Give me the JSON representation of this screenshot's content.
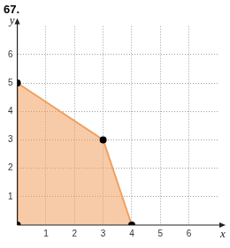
{
  "chart_data": {
    "type": "area",
    "title": "67.",
    "x_label": "x",
    "y_label": "y",
    "x": [
      0,
      0,
      3,
      4
    ],
    "values": [
      0,
      5,
      3,
      0
    ],
    "color": "#f0a060",
    "marker": "circle",
    "xlim": [
      0,
      7
    ],
    "ylim": [
      0,
      7
    ],
    "xticks": [
      1,
      2,
      3,
      4,
      5,
      6
    ],
    "yticks": [
      1,
      2,
      3,
      4,
      5,
      6
    ],
    "grid": true
  }
}
